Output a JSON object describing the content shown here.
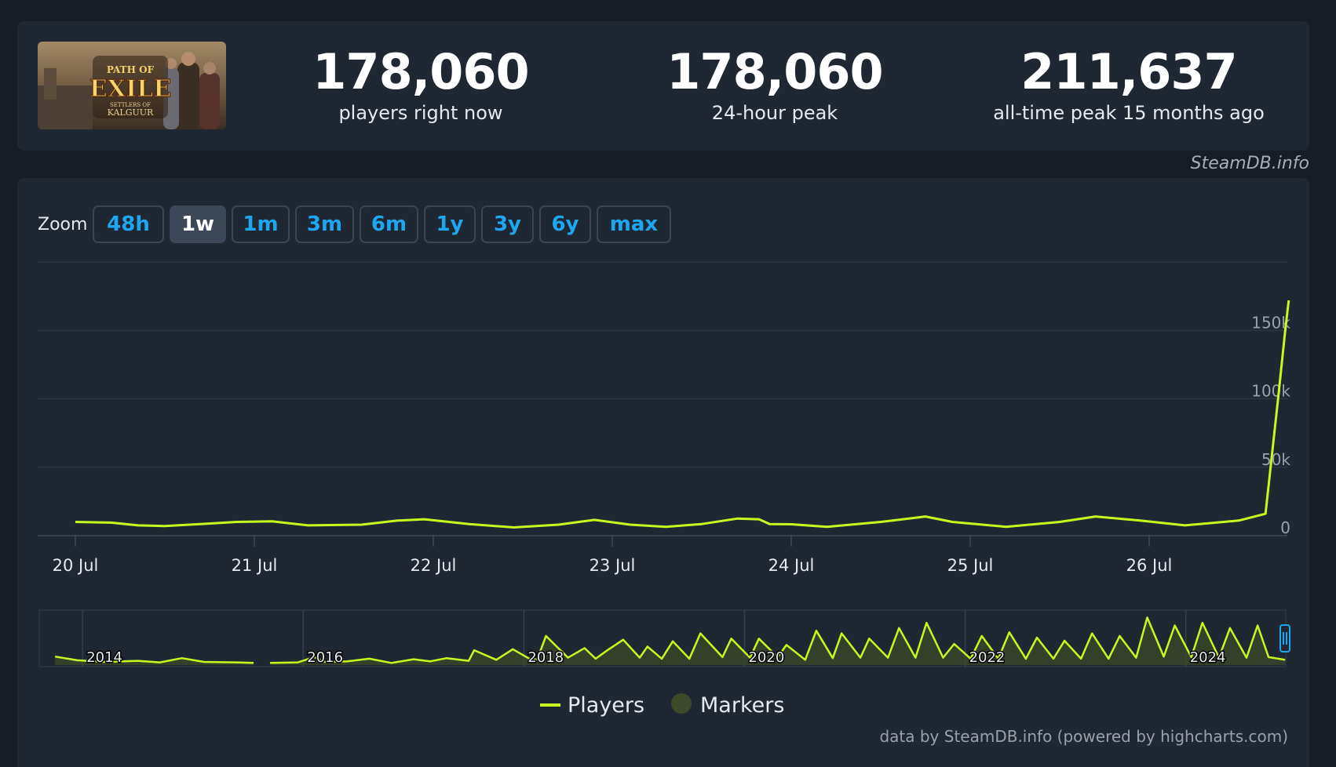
{
  "stats": [
    {
      "value": "178,060",
      "label": "players right now"
    },
    {
      "value": "178,060",
      "label": "24-hour peak"
    },
    {
      "value": "211,637",
      "label": "all-time peak 15 months ago"
    }
  ],
  "game": {
    "logo_line1": "PATH OF",
    "logo_line2": "EXILE",
    "logo_line3": "SETTLERS OF",
    "logo_line4": "KALGUUR"
  },
  "credit_top": "SteamDB.info",
  "zoom": {
    "label": "Zoom",
    "options": [
      "48h",
      "1w",
      "1m",
      "3m",
      "6m",
      "1y",
      "3y",
      "6y",
      "max"
    ],
    "active": "1w"
  },
  "colors": {
    "players": "#c6f91f",
    "markers": "#3e4a2a",
    "active_button": "#3c4758",
    "link": "#1ea7f0"
  },
  "chart_data": {
    "type": "line",
    "series": [
      {
        "name": "Players",
        "x": [
          0,
          0.2,
          0.35,
          0.5,
          0.7,
          0.9,
          1.1,
          1.3,
          1.6,
          1.8,
          1.95,
          2.2,
          2.45,
          2.7,
          2.9,
          3.1,
          3.3,
          3.5,
          3.7,
          3.82,
          3.88,
          4.0,
          4.2,
          4.5,
          4.75,
          4.9,
          5.2,
          5.5,
          5.7,
          5.95,
          6.2,
          6.5,
          6.65,
          6.72,
          6.76,
          6.78
        ],
        "y": [
          10000,
          9500,
          7500,
          7000,
          8500,
          10000,
          10500,
          7500,
          8000,
          11000,
          12000,
          8500,
          6000,
          8000,
          11500,
          8000,
          6500,
          8500,
          12500,
          12000,
          8500,
          8300,
          6500,
          10000,
          14000,
          10000,
          6500,
          10000,
          14000,
          11000,
          7500,
          11000,
          16000,
          100000,
          150000,
          172000
        ]
      }
    ],
    "x_ticks": [
      "20 Jul",
      "21 Jul",
      "22 Jul",
      "23 Jul",
      "24 Jul",
      "25 Jul",
      "26 Jul"
    ],
    "y_ticks": [
      0,
      50000,
      100000,
      150000
    ],
    "y_tick_labels": [
      "0",
      "50k",
      "100k",
      "150k"
    ],
    "ylim": [
      0,
      200000
    ],
    "navigator": {
      "years": [
        "2014",
        "2016",
        "2018",
        "2020",
        "2022",
        "2024"
      ],
      "series": [
        [
          2013.55,
          16000
        ],
        [
          2013.75,
          9000
        ],
        [
          2014.0,
          6000
        ],
        [
          2014.3,
          8000
        ],
        [
          2014.5,
          5000
        ],
        [
          2014.7,
          13000
        ],
        [
          2014.9,
          6000
        ],
        [
          2015.2,
          5000
        ],
        [
          2015.35,
          4000
        ],
        null,
        [
          2015.5,
          4000
        ],
        [
          2015.75,
          5000
        ],
        [
          2015.9,
          15000
        ],
        [
          2016.0,
          6000
        ],
        [
          2016.2,
          7000
        ],
        [
          2016.4,
          12000
        ],
        [
          2016.6,
          4000
        ],
        [
          2016.8,
          11000
        ],
        [
          2016.95,
          7000
        ],
        [
          2017.1,
          13000
        ],
        [
          2017.3,
          8000
        ],
        [
          2017.35,
          28000
        ],
        [
          2017.55,
          10000
        ],
        [
          2017.7,
          30000
        ],
        [
          2017.85,
          12000
        ],
        [
          2017.92,
          10000
        ],
        [
          2018.0,
          55000
        ],
        [
          2018.2,
          14000
        ],
        [
          2018.35,
          32000
        ],
        [
          2018.45,
          12000
        ],
        [
          2018.55,
          27000
        ],
        [
          2018.7,
          48000
        ],
        [
          2018.85,
          14000
        ],
        [
          2018.92,
          35000
        ],
        [
          2019.05,
          12000
        ],
        [
          2019.15,
          45000
        ],
        [
          2019.3,
          12000
        ],
        [
          2019.4,
          60000
        ],
        [
          2019.6,
          15000
        ],
        [
          2019.68,
          50000
        ],
        [
          2019.85,
          14000
        ],
        [
          2019.93,
          50000
        ],
        [
          2020.1,
          15000
        ],
        [
          2020.18,
          38000
        ],
        [
          2020.35,
          10000
        ],
        [
          2020.45,
          65000
        ],
        [
          2020.6,
          13000
        ],
        [
          2020.68,
          60000
        ],
        [
          2020.85,
          14000
        ],
        [
          2020.93,
          50000
        ],
        [
          2021.1,
          14000
        ],
        [
          2021.2,
          70000
        ],
        [
          2021.35,
          14000
        ],
        [
          2021.45,
          80000
        ],
        [
          2021.6,
          14000
        ],
        [
          2021.7,
          40000
        ],
        [
          2021.85,
          12000
        ],
        [
          2021.95,
          55000
        ],
        [
          2022.1,
          12000
        ],
        [
          2022.2,
          62000
        ],
        [
          2022.35,
          12000
        ],
        [
          2022.45,
          52000
        ],
        [
          2022.6,
          12000
        ],
        [
          2022.7,
          46000
        ],
        [
          2022.85,
          12000
        ],
        [
          2022.95,
          60000
        ],
        [
          2023.1,
          12000
        ],
        [
          2023.2,
          55000
        ],
        [
          2023.35,
          14000
        ],
        [
          2023.45,
          90000
        ],
        [
          2023.6,
          16000
        ],
        [
          2023.7,
          75000
        ],
        [
          2023.85,
          15000
        ],
        [
          2023.95,
          80000
        ],
        [
          2024.1,
          14000
        ],
        [
          2024.2,
          70000
        ],
        [
          2024.35,
          14000
        ],
        [
          2024.45,
          75000
        ],
        [
          2024.55,
          15000
        ],
        [
          2024.7,
          10000
        ]
      ]
    },
    "legend": [
      "Players",
      "Markers"
    ],
    "credit": "data by SteamDB.info (powered by highcharts.com)"
  }
}
